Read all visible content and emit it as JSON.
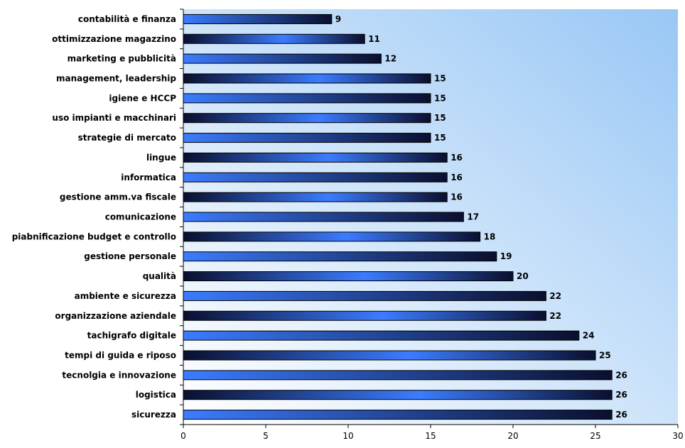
{
  "chart_data": {
    "type": "bar",
    "orientation": "horizontal",
    "categories": [
      "contabilità e finanza",
      "ottimizzazione magazzino",
      "marketing e pubblicità",
      "management, leadership",
      "igiene e HCCP",
      "uso impianti e macchinari",
      "strategie di mercato",
      "lingue",
      "informatica",
      "gestione amm.va fiscale",
      "comunicazione",
      "piabnificazione budget e controllo",
      "gestione personale",
      "qualità",
      "ambiente e sicurezza",
      "organizzazione aziendale",
      "tachigrafo digitale",
      "tempi di guida e riposo",
      "tecnolgia e innovazione",
      "logistica",
      "sicurezza"
    ],
    "values": [
      9,
      11,
      12,
      15,
      15,
      15,
      15,
      16,
      16,
      16,
      17,
      18,
      19,
      20,
      22,
      22,
      24,
      25,
      26,
      26,
      26
    ],
    "xlim": [
      0,
      30
    ],
    "xticks": [
      "0",
      "5",
      "10",
      "15",
      "20",
      "25",
      "30"
    ],
    "title": "",
    "xlabel": "",
    "ylabel": "",
    "grid": false,
    "data_labels": true,
    "colors": {
      "bar_dark": "#0a0f2e",
      "bar_light": "#3b7cff",
      "bg_top": "#99c7f5",
      "bg_bottom": "#ffffff"
    }
  }
}
